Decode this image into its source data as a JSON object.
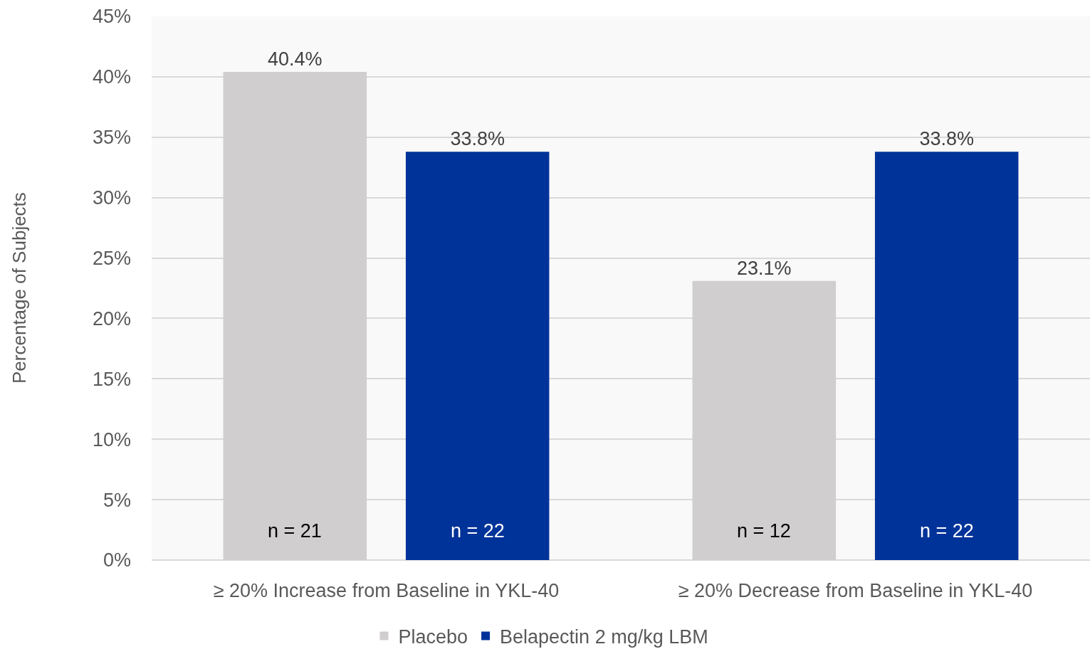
{
  "chart_data": {
    "type": "bar",
    "ylabel": "Percentage of Subjects",
    "categories": [
      "≥ 20% Increase from Baseline in YKL-40",
      "≥ 20% Decrease from Baseline in YKL-40"
    ],
    "series": [
      {
        "name": "Placebo",
        "color": "#d0cecf",
        "values": [
          40.4,
          23.1
        ],
        "value_labels": [
          "40.4%",
          "23.1%"
        ]
      },
      {
        "name": "Belapectin 2 mg/kg LBM",
        "color": "#003399",
        "values": [
          33.8,
          33.8
        ],
        "value_labels": [
          "33.8%",
          "33.8%"
        ]
      }
    ],
    "ylim": [
      0,
      45
    ],
    "yticks": [
      {
        "value": 0,
        "label": "0%"
      },
      {
        "value": 5,
        "label": "5%"
      },
      {
        "value": 10,
        "label": "10%"
      },
      {
        "value": 15,
        "label": "15%"
      },
      {
        "value": 20,
        "label": "20%"
      },
      {
        "value": 25,
        "label": "25%"
      },
      {
        "value": 30,
        "label": "30%"
      },
      {
        "value": 35,
        "label": "35%"
      },
      {
        "value": 40,
        "label": "40%"
      },
      {
        "value": 45,
        "label": "45%"
      }
    ],
    "grid": "y",
    "legend": "bottom",
    "annotations": [
      "n = 21",
      "n = 22",
      "n = 12",
      "n = 22"
    ]
  }
}
